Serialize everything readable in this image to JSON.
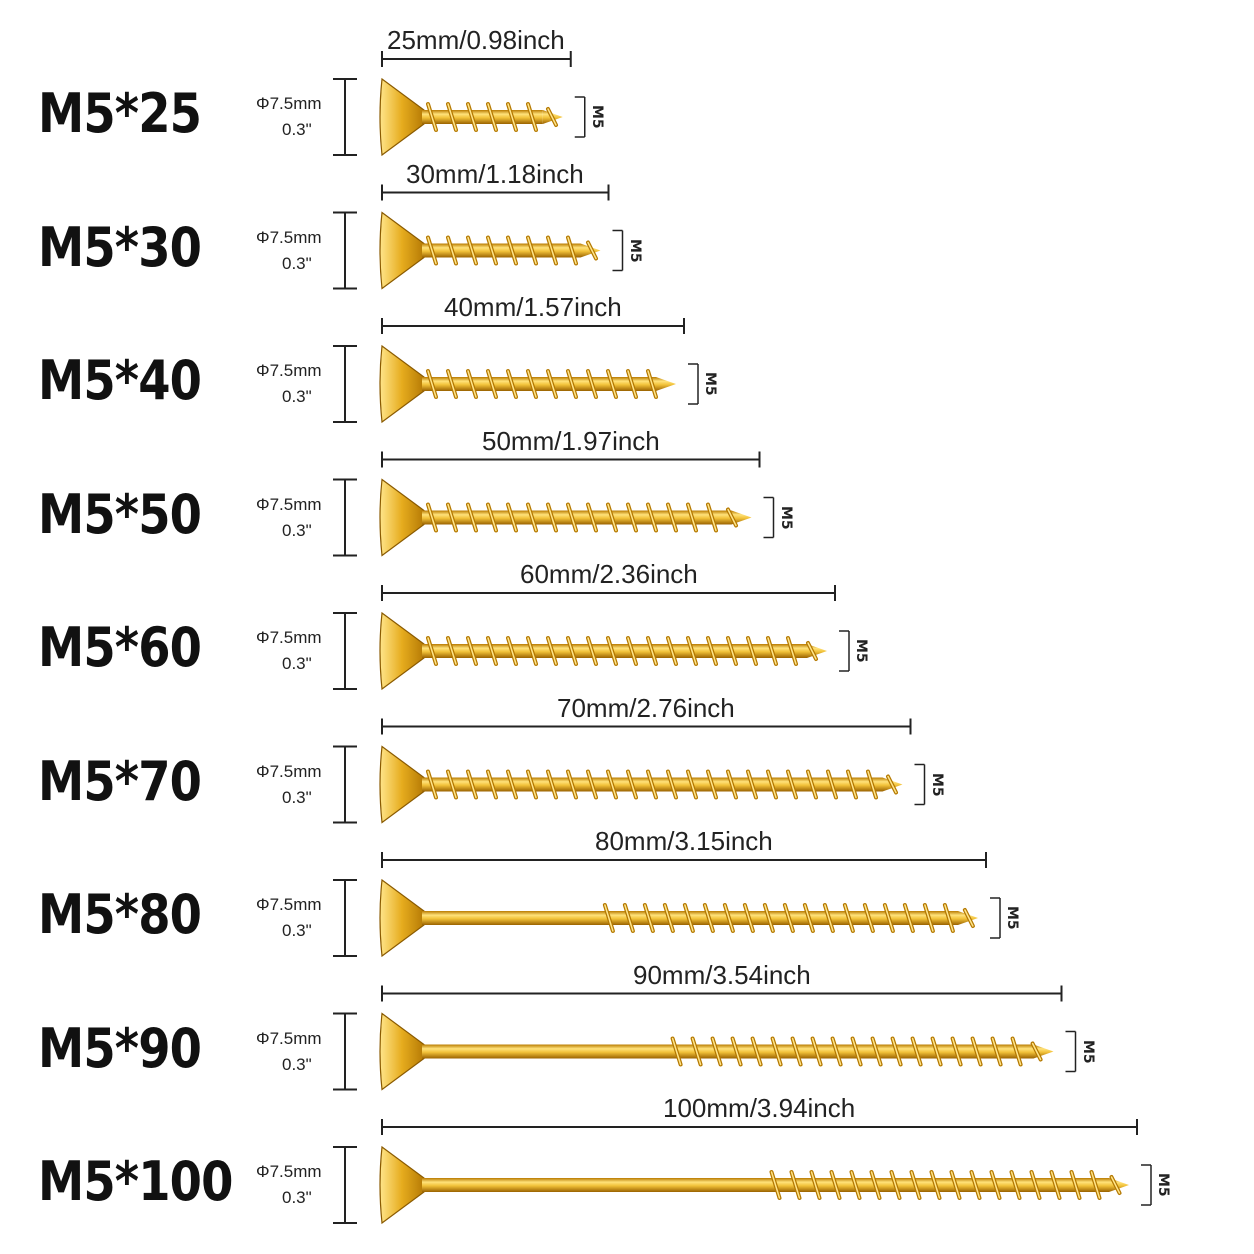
{
  "thread_label": "M5",
  "colors": {
    "brass_light": "#ffe27a",
    "brass_mid": "#e8b020",
    "brass_dark": "#a86a00",
    "line": "#222222"
  },
  "items": [
    {
      "name": "M5*25",
      "diameter_mm": "Φ7.5mm",
      "diameter_in": "0.3\"",
      "length_text": "25mm/0.98inch",
      "length_mm": 25,
      "shank_fraction": 0
    },
    {
      "name": "M5*30",
      "diameter_mm": "Φ7.5mm",
      "diameter_in": "0.3\"",
      "length_text": "30mm/1.18inch",
      "length_mm": 30,
      "shank_fraction": 0
    },
    {
      "name": "M5*40",
      "diameter_mm": "Φ7.5mm",
      "diameter_in": "0.3\"",
      "length_text": "40mm/1.57inch",
      "length_mm": 40,
      "shank_fraction": 0
    },
    {
      "name": "M5*50",
      "diameter_mm": "Φ7.5mm",
      "diameter_in": "0.3\"",
      "length_text": "50mm/1.97inch",
      "length_mm": 50,
      "shank_fraction": 0
    },
    {
      "name": "M5*60",
      "diameter_mm": "Φ7.5mm",
      "diameter_in": "0.3\"",
      "length_text": "60mm/2.36inch",
      "length_mm": 60,
      "shank_fraction": 0
    },
    {
      "name": "M5*70",
      "diameter_mm": "Φ7.5mm",
      "diameter_in": "0.3\"",
      "length_text": "70mm/2.76inch",
      "length_mm": 70,
      "shank_fraction": 0
    },
    {
      "name": "M5*80",
      "diameter_mm": "Φ7.5mm",
      "diameter_in": "0.3\"",
      "length_text": "80mm/3.15inch",
      "length_mm": 80,
      "shank_fraction": 0.33
    },
    {
      "name": "M5*90",
      "diameter_mm": "Φ7.5mm",
      "diameter_in": "0.3\"",
      "length_text": "90mm/3.54inch",
      "length_mm": 90,
      "shank_fraction": 0.4
    },
    {
      "name": "M5*100",
      "diameter_mm": "Φ7.5mm",
      "diameter_in": "0.3\"",
      "length_text": "100mm/3.94inch",
      "length_mm": 100,
      "shank_fraction": 0.5
    }
  ]
}
